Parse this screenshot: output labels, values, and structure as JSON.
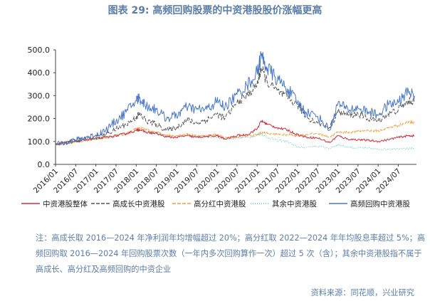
{
  "title": "图表 29: 高频回购股票的中资港股股价涨幅更高",
  "chart_data": {
    "type": "line",
    "title": "图表 29: 高频回购股票的中资港股股价涨幅更高",
    "ylim": [
      0,
      500
    ],
    "yticks": [
      "0.0",
      "100.0",
      "200.0",
      "300.0",
      "400.0",
      "500.0"
    ],
    "xticks": [
      "2016/01",
      "2016/07",
      "2017/01",
      "2017/07",
      "2018/01",
      "2018/07",
      "2019/01",
      "2019/07",
      "2020/01",
      "2020/07",
      "2021/01",
      "2021/07",
      "2022/01",
      "2022/07",
      "2023/01",
      "2023/07",
      "2024/01",
      "2024/07"
    ],
    "x": [
      2016.0,
      2016.25,
      2016.5,
      2016.75,
      2017.0,
      2017.25,
      2017.5,
      2017.75,
      2018.0,
      2018.08,
      2018.25,
      2018.5,
      2018.75,
      2019.0,
      2019.25,
      2019.5,
      2019.75,
      2020.0,
      2020.2,
      2020.5,
      2020.75,
      2021.0,
      2021.1,
      2021.25,
      2021.5,
      2021.75,
      2022.0,
      2022.2,
      2022.5,
      2022.8,
      2023.0,
      2023.25,
      2023.5,
      2023.75,
      2024.0,
      2024.25,
      2024.5,
      2024.75,
      2024.9
    ],
    "series": [
      {
        "name": "中资港股整体",
        "color": "#d03040",
        "dash": "",
        "values": [
          90,
          96,
          100,
          108,
          112,
          118,
          125,
          135,
          148,
          152,
          140,
          135,
          120,
          118,
          125,
          118,
          122,
          125,
          110,
          125,
          130,
          155,
          190,
          175,
          160,
          150,
          130,
          120,
          115,
          95,
          125,
          110,
          108,
          105,
          100,
          108,
          118,
          125,
          125
        ]
      },
      {
        "name": "高成长中资港股",
        "color": "#555555",
        "dash": "5,2",
        "values": [
          85,
          96,
          102,
          112,
          118,
          130,
          155,
          175,
          205,
          220,
          190,
          175,
          150,
          160,
          195,
          180,
          195,
          220,
          200,
          270,
          300,
          350,
          420,
          360,
          320,
          290,
          260,
          210,
          180,
          160,
          230,
          215,
          220,
          200,
          190,
          220,
          240,
          275,
          275
        ]
      },
      {
        "name": "高分红中资港股",
        "color": "#f0a030",
        "dash": "5,2",
        "values": [
          85,
          92,
          98,
          105,
          110,
          118,
          125,
          132,
          155,
          160,
          150,
          140,
          128,
          125,
          132,
          125,
          125,
          130,
          115,
          120,
          125,
          130,
          140,
          135,
          130,
          130,
          125,
          130,
          135,
          120,
          140,
          140,
          145,
          148,
          145,
          160,
          170,
          185,
          185
        ]
      },
      {
        "name": "其余中资港股",
        "color": "#4cc8c8",
        "dash": "1,2",
        "values": [
          85,
          92,
          98,
          105,
          110,
          115,
          122,
          130,
          148,
          152,
          140,
          130,
          120,
          118,
          125,
          118,
          118,
          122,
          110,
          115,
          118,
          125,
          135,
          118,
          105,
          100,
          75,
          75,
          80,
          70,
          85,
          75,
          72,
          70,
          65,
          68,
          70,
          68,
          70
        ]
      },
      {
        "name": "高频回购中资港股",
        "color": "#4a78c8",
        "dash": "",
        "values": [
          86,
          98,
          106,
          118,
          128,
          150,
          190,
          228,
          280,
          290,
          255,
          240,
          200,
          215,
          250,
          240,
          240,
          275,
          250,
          305,
          345,
          400,
          475,
          420,
          370,
          330,
          270,
          230,
          210,
          150,
          265,
          240,
          245,
          230,
          215,
          260,
          270,
          320,
          300
        ]
      }
    ]
  },
  "notes": "注：高成长取 2016—2024 年净利润年均增幅超过 20%；高分红取 2022—2024 年年均股息率超过 5%；高频回购取 2016—2024 年回购股票次数（一年内多次回购算作一次）超过 5 次（含）；其余中资港股指不属于高成长、高分红及高频回购的中资企业",
  "source": "资料来源：同花顺，兴业研究"
}
